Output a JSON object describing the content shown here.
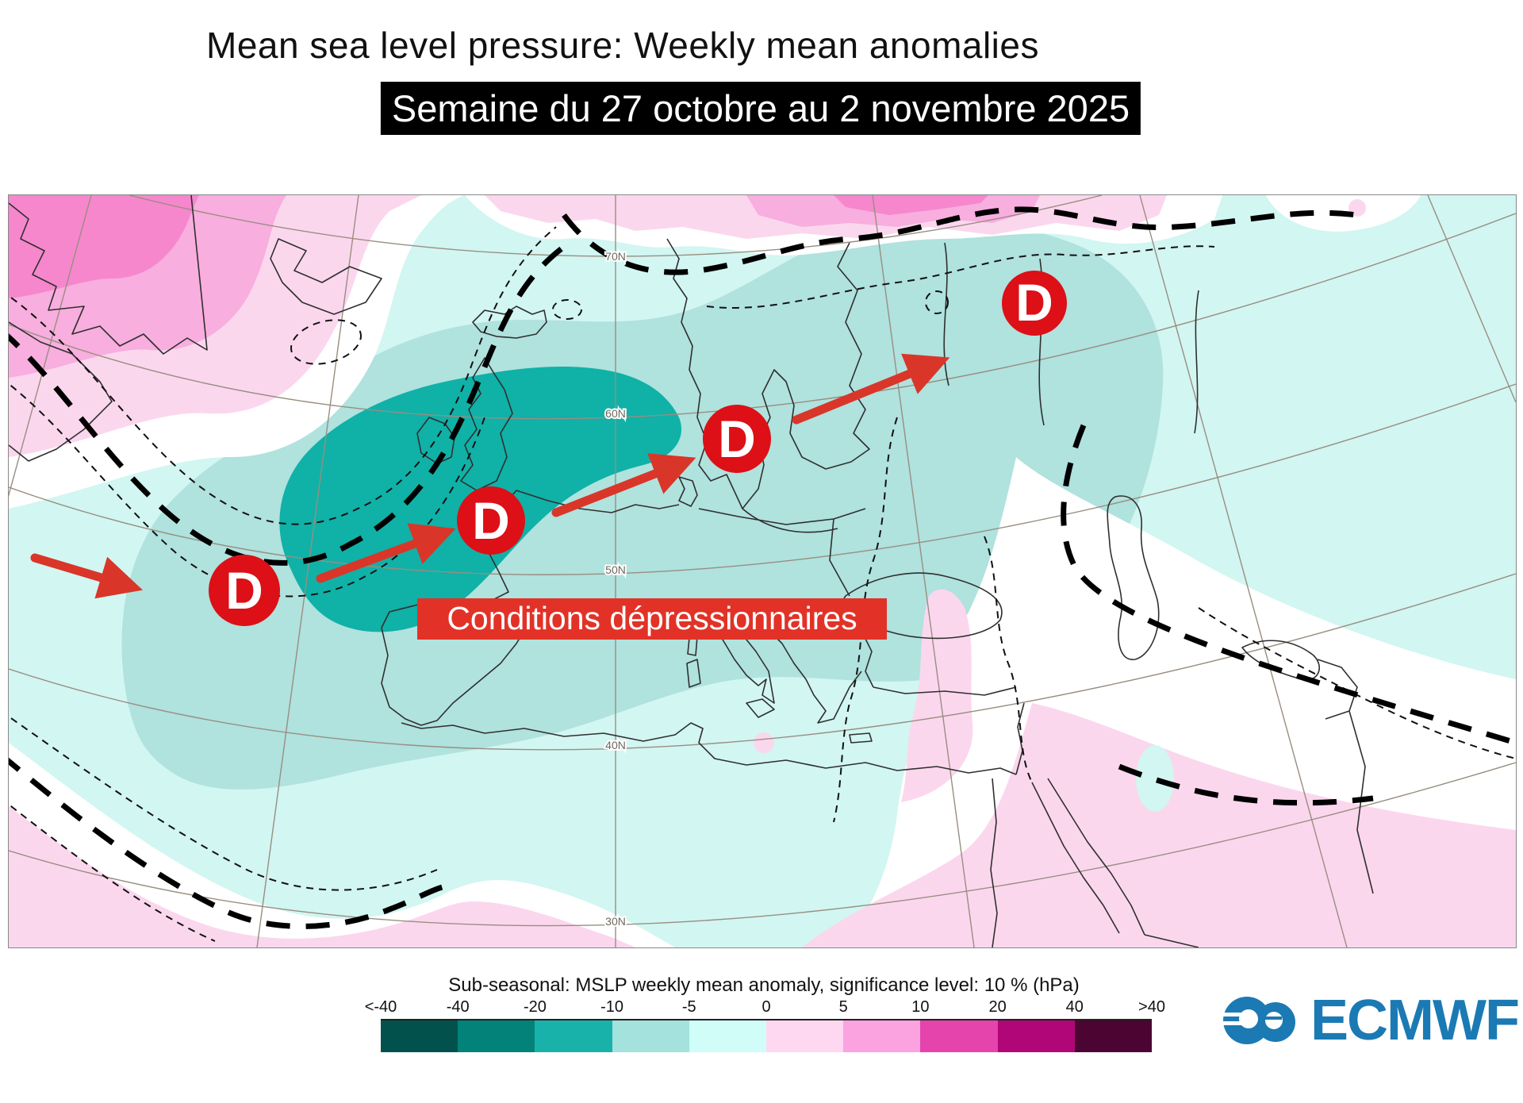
{
  "header": {
    "title": "Mean sea level pressure: Weekly mean anomalies",
    "subtitle": "Semaine du 27 octobre au 2 novembre 2025"
  },
  "map": {
    "annotation": "Conditions dépressionnaires",
    "marker_letter": "D",
    "latitude_labels": [
      "70N",
      "60N",
      "50N",
      "40N",
      "30N"
    ]
  },
  "legend": {
    "title": "Sub-seasonal: MSLP weekly mean anomaly, significance level: 10 % (hPa)",
    "ticks": [
      "<-40",
      "-40",
      "-20",
      "-10",
      "-5",
      "0",
      "5",
      "10",
      "20",
      "40",
      ">40"
    ],
    "colors": [
      "#02514c",
      "#028278",
      "#18b2ab",
      "#a3e2dd",
      "#d0fdf8",
      "#fdd8f0",
      "#fba3e0",
      "#e444ac",
      "#b00677",
      "#4c0433"
    ]
  },
  "logo": {
    "name": "ECMWF"
  },
  "colors": {
    "map_background": "#d2f6f2",
    "anomaly_medium_teal": "#b0e2de",
    "anomaly_dark_teal": "#10b1a7",
    "anomaly_pale_pink": "#fbd7ee",
    "anomaly_medium_pink": "#f8aede",
    "anomaly_dark_pink": "#f687cd",
    "marker_red": "#dc1016",
    "arrow_red": "#d93629",
    "annotation_bg": "#e23227",
    "logo_blue": "#1b7ab3"
  }
}
